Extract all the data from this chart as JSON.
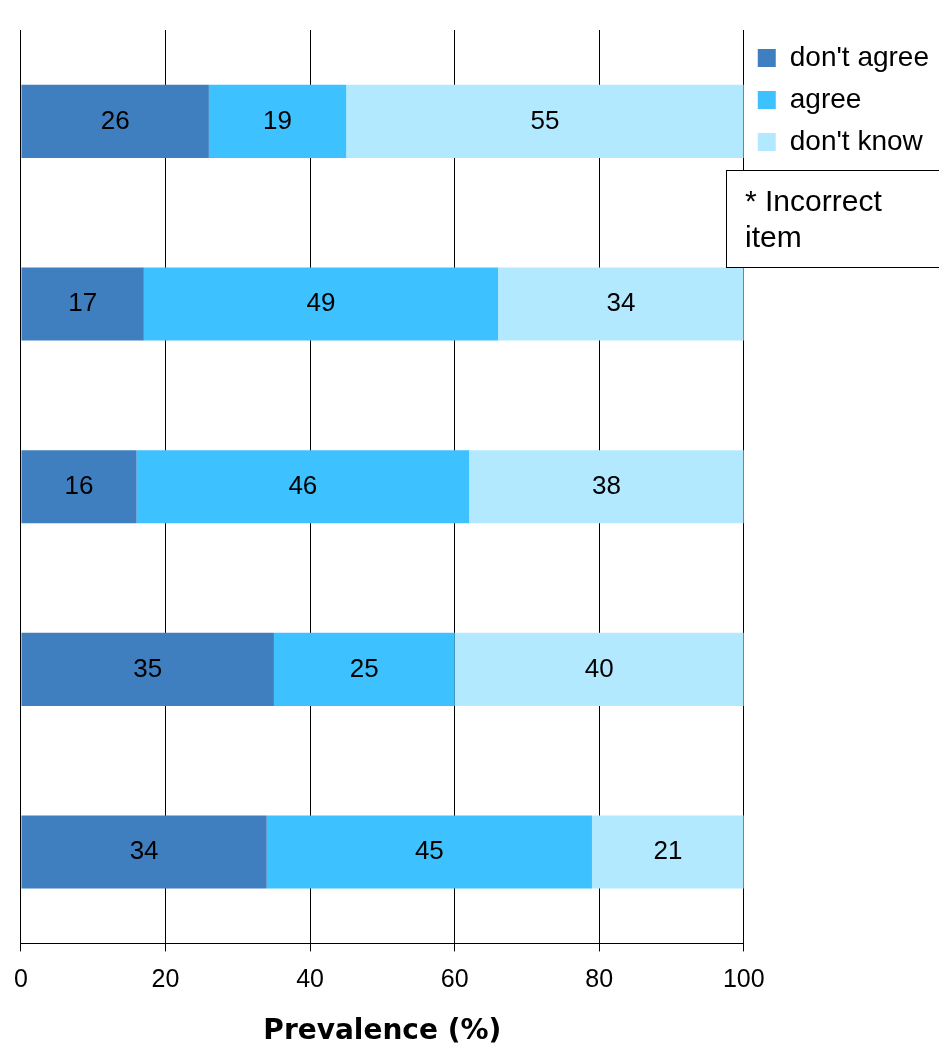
{
  "chart_data": {
    "type": "bar",
    "orientation": "horizontal",
    "stacked": true,
    "xlabel": "Prevalence (%)",
    "categories": [
      null,
      null,
      null,
      null,
      null
    ],
    "series": [
      {
        "name": "don't agree",
        "color": "#3f7fbf",
        "values": [
          26,
          17,
          16,
          35,
          34
        ]
      },
      {
        "name": "agree",
        "color": "#3dc1ff",
        "values": [
          19,
          49,
          46,
          25,
          45
        ]
      },
      {
        "name": "don't know",
        "color": "#b3e9ff",
        "values": [
          55,
          34,
          38,
          40,
          21
        ]
      }
    ],
    "xlim": [
      0,
      100
    ],
    "xticks": [
      0,
      20,
      40,
      60,
      80,
      100
    ],
    "grid": "x",
    "legend": "top right",
    "data_labels": true,
    "annotations": [
      "* Incorrect item"
    ]
  }
}
